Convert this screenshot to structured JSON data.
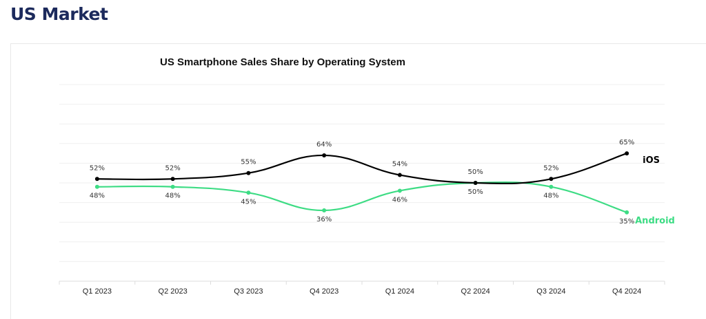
{
  "page": {
    "title": "US Market"
  },
  "colors": {
    "title": "#1c2a5c",
    "ios": "#000000",
    "android": "#3ddc84",
    "grid": "#efefef"
  },
  "chart_data": {
    "type": "line",
    "title": "US Smartphone Sales Share by Operating System",
    "xlabel": "",
    "ylabel": "",
    "categories": [
      "Q1 2023",
      "Q2 2023",
      "Q3 2023",
      "Q4 2023",
      "Q1 2024",
      "Q2 2024",
      "Q3 2024",
      "Q4 2024"
    ],
    "ylim": [
      0,
      100
    ],
    "y_grid_step": 10,
    "grid": true,
    "smooth": true,
    "legend": "inline-end-labels",
    "series": [
      {
        "name": "iOS",
        "color": "#000000",
        "values": [
          52,
          52,
          55,
          64,
          54,
          50,
          52,
          65
        ],
        "labels": [
          "52%",
          "52%",
          "55%",
          "64%",
          "54%",
          "50%",
          "52%",
          "65%"
        ],
        "label_position": [
          "above",
          "above",
          "above",
          "above",
          "above",
          "below",
          "above",
          "above"
        ]
      },
      {
        "name": "Android",
        "color": "#3ddc84",
        "values": [
          48,
          48,
          45,
          36,
          46,
          50,
          48,
          35
        ],
        "labels": [
          "48%",
          "48%",
          "45%",
          "36%",
          "46%",
          "50%",
          "48%",
          "35%"
        ],
        "label_position": [
          "below",
          "below",
          "below",
          "below",
          "below",
          "above",
          "below",
          "below"
        ]
      }
    ]
  }
}
